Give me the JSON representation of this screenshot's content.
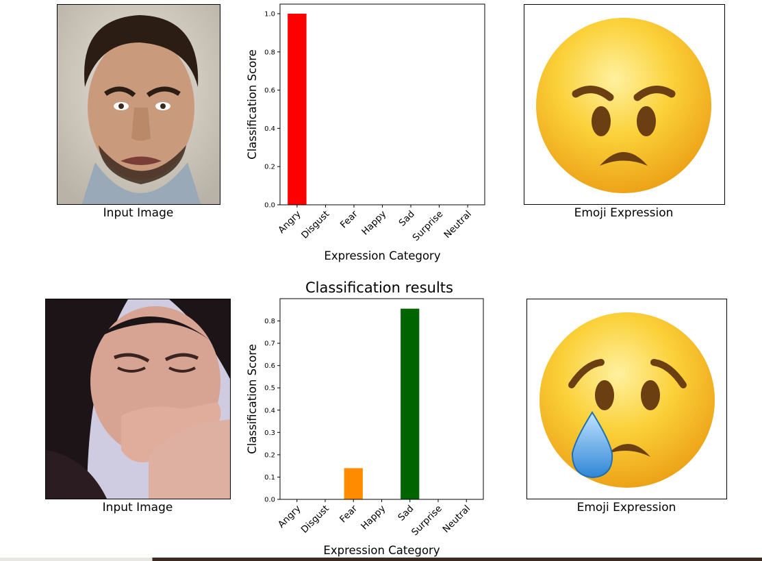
{
  "figure": {
    "suptitle": "Classification results",
    "input_caption": "Input Image",
    "emoji_caption": "Emoji Expression"
  },
  "rows": [
    {
      "input_subject": "angry-man-face",
      "emoji": "angry-face-emoji",
      "chart_index": 0
    },
    {
      "input_subject": "crying-woman-face",
      "emoji": "crying-face-emoji",
      "chart_index": 1
    }
  ],
  "colors": {
    "angry_bar": "#ff0000",
    "fear_bar": "#ff8c00",
    "sad_bar": "#006400",
    "emoji_yellow": "#f9c21a",
    "emoji_brown": "#6b3f12",
    "tear_blue": "#4aa3e8"
  },
  "chart_data": [
    {
      "type": "bar",
      "title": "",
      "categories": [
        "Angry",
        "Disgust",
        "Fear",
        "Happy",
        "Sad",
        "Surprise",
        "Neutral"
      ],
      "values": [
        1.0,
        0.0,
        0.0,
        0.0,
        0.0,
        0.0,
        0.0
      ],
      "bar_colors": [
        "#ff0000",
        "#ff0000",
        "#ff0000",
        "#ff0000",
        "#ff0000",
        "#ff0000",
        "#ff0000"
      ],
      "xlabel": "Expression Category",
      "ylabel": "Classification Score",
      "ylim": [
        0,
        1.05
      ],
      "yticks": [
        "0.0",
        "0.2",
        "0.4",
        "0.6",
        "0.8",
        "1.0"
      ],
      "grid": false
    },
    {
      "type": "bar",
      "title": "Classification results",
      "categories": [
        "Angry",
        "Disgust",
        "Fear",
        "Happy",
        "Sad",
        "Surprise",
        "Neutral"
      ],
      "values": [
        0.0,
        0.0,
        0.14,
        0.0,
        0.855,
        0.0,
        0.0
      ],
      "bar_colors": [
        "#ff0000",
        "#ff0000",
        "#ff8c00",
        "#ff0000",
        "#006400",
        "#ff0000",
        "#ff0000"
      ],
      "xlabel": "Expression Category",
      "ylabel": "Classification Score",
      "ylim": [
        0,
        0.9
      ],
      "yticks": [
        "0.0",
        "0.1",
        "0.2",
        "0.3",
        "0.4",
        "0.5",
        "0.6",
        "0.7",
        "0.8"
      ],
      "grid": false
    }
  ]
}
